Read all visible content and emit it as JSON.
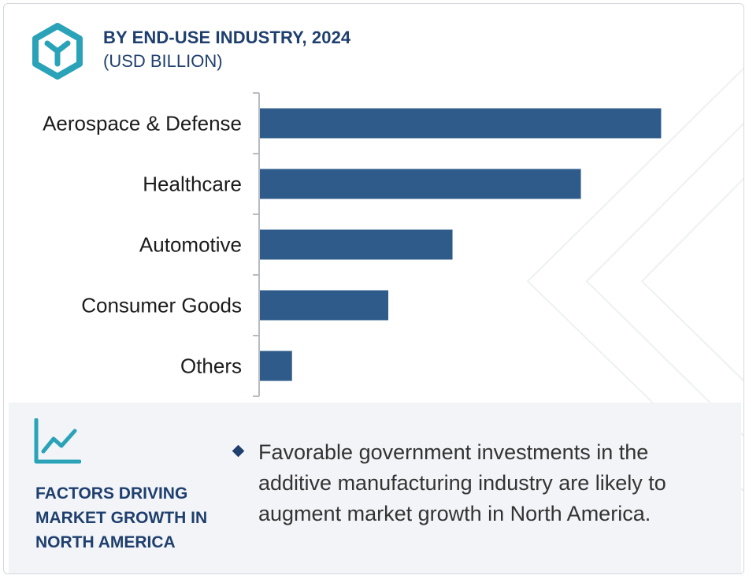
{
  "header": {
    "title": "BY END-USE INDUSTRY, 2024",
    "subtitle": "(USD BILLION)",
    "logo_icon": "hexagon-y-logo-icon",
    "accent_color": "#2aa3b8"
  },
  "chart_data": {
    "type": "bar",
    "orientation": "horizontal",
    "title": "BY END-USE INDUSTRY, 2024",
    "subtitle": "(USD BILLION)",
    "categories": [
      "Aerospace & Defense",
      "Healthcare",
      "Automotive",
      "Consumer Goods",
      "Others"
    ],
    "values": [
      10.0,
      8.0,
      4.8,
      3.2,
      0.8
    ],
    "xlim": [
      0,
      10.6
    ],
    "bar_color": "#2e5b8a",
    "grid": false,
    "legend": "none"
  },
  "factors": {
    "icon": "trend-line-chart-icon",
    "heading": "FACTORS DRIVING MARKET GROWTH IN NORTH AMERICA",
    "bullets": [
      "Favorable government investments in the additive manufacturing industry are likely to augment market growth in North America."
    ]
  }
}
